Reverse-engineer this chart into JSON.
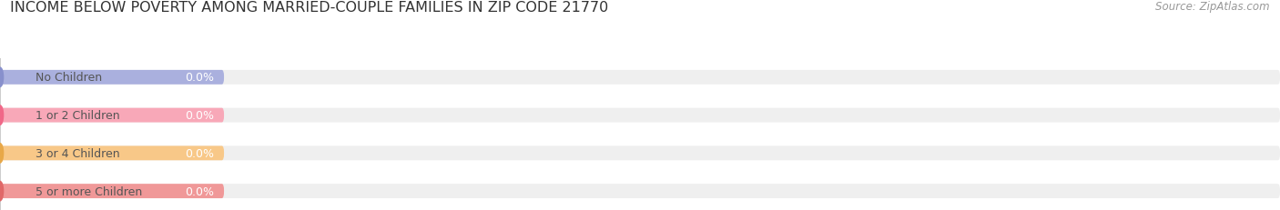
{
  "title": "INCOME BELOW POVERTY AMONG MARRIED-COUPLE FAMILIES IN ZIP CODE 21770",
  "source": "Source: ZipAtlas.com",
  "categories": [
    "No Children",
    "1 or 2 Children",
    "3 or 4 Children",
    "5 or more Children"
  ],
  "values": [
    0.0,
    0.0,
    0.0,
    0.0
  ],
  "bar_colors": [
    "#aab0de",
    "#f8a8b8",
    "#f8c888",
    "#f09898"
  ],
  "dot_colors": [
    "#8890cc",
    "#f06888",
    "#e8a848",
    "#e06868"
  ],
  "bg_track_color": "#efefef",
  "label_color": "#555555",
  "value_label_color": "#ffffff",
  "tick_label_color": "#999999",
  "grid_color": "#cccccc",
  "background_color": "#ffffff",
  "title_fontsize": 11.5,
  "label_fontsize": 9,
  "source_fontsize": 8.5
}
